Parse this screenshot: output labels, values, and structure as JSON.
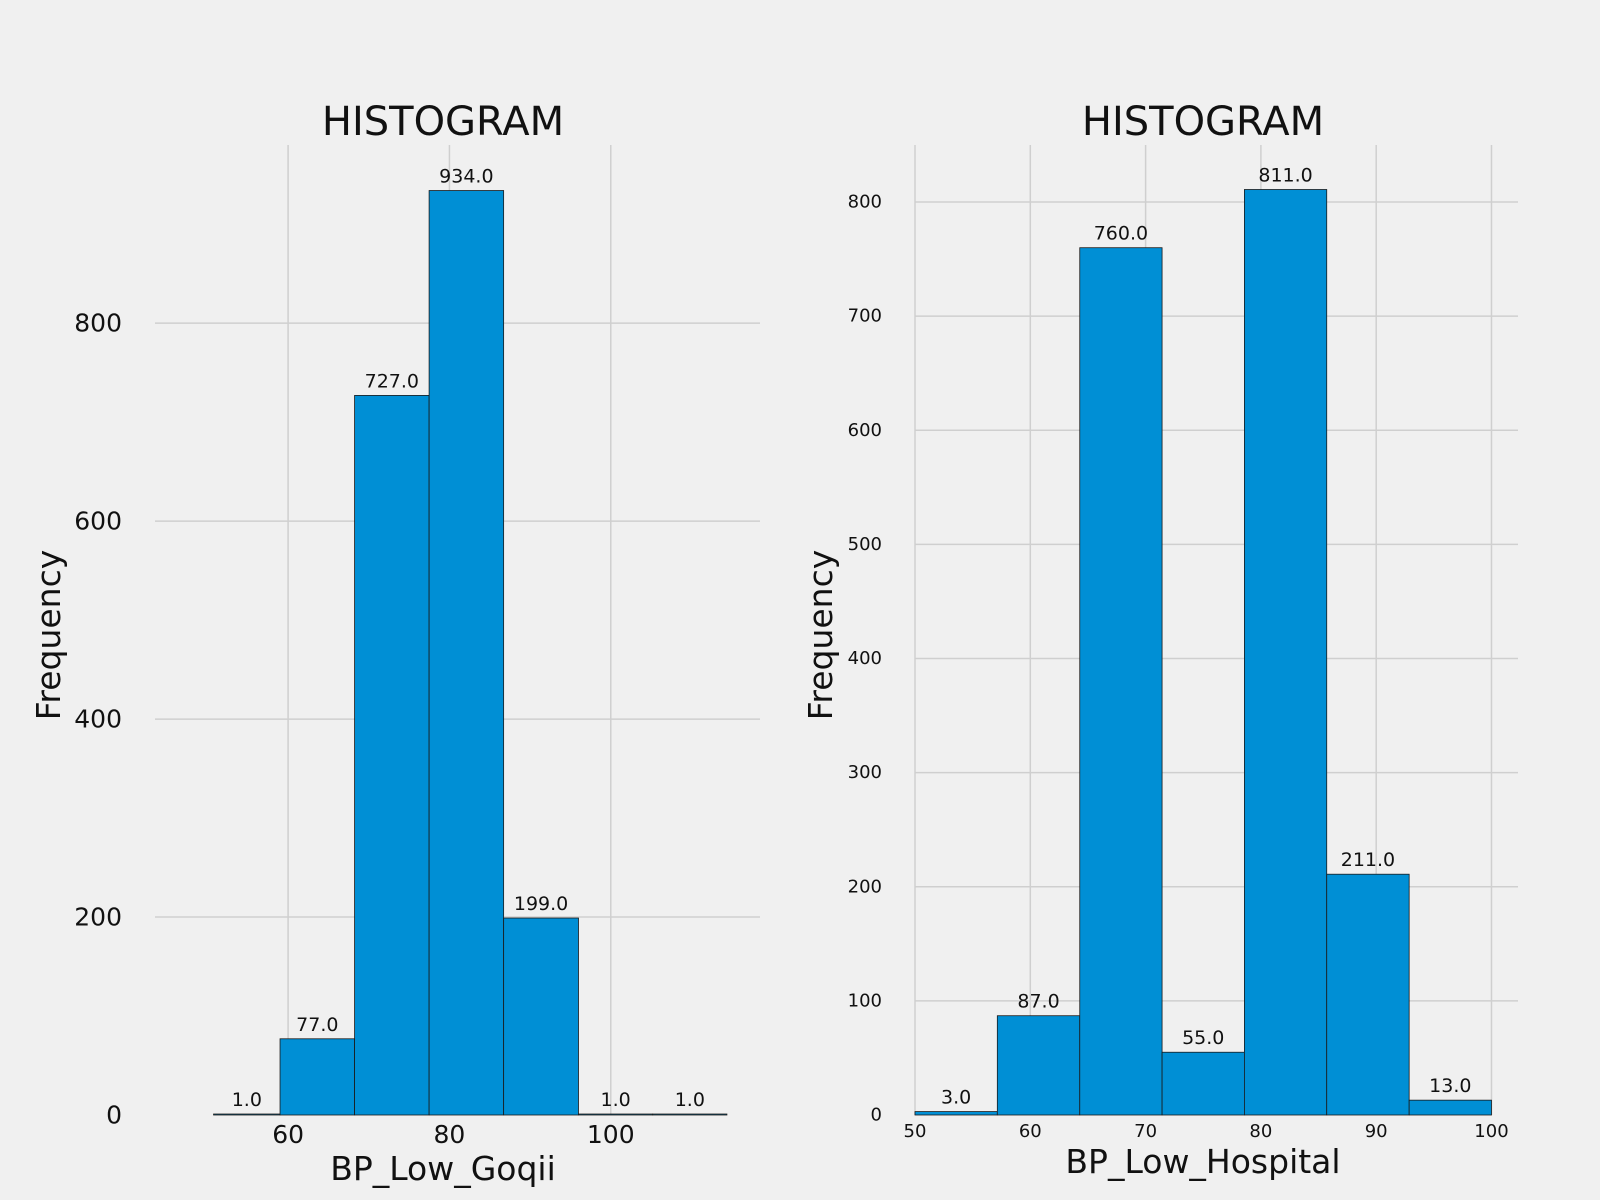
{
  "chart_data": [
    {
      "type": "bar",
      "title": "HISTOGRAM",
      "xlabel": "BP_Low_Goqii",
      "ylabel": "Frequency",
      "bar_color": "#008fd5",
      "bins": [
        {
          "x0": 50.76,
          "x1": 59.0,
          "value": 1,
          "label": "1.0"
        },
        {
          "x0": 59.0,
          "x1": 68.24,
          "value": 77,
          "label": "77.0"
        },
        {
          "x0": 68.24,
          "x1": 77.48,
          "value": 727,
          "label": "727.0"
        },
        {
          "x0": 77.48,
          "x1": 86.72,
          "value": 934,
          "label": "934.0"
        },
        {
          "x0": 86.72,
          "x1": 96.0,
          "value": 199,
          "label": "199.0"
        },
        {
          "x0": 96.0,
          "x1": 105.2,
          "value": 1,
          "label": "1.0"
        },
        {
          "x0": 105.2,
          "x1": 114.4,
          "value": 1,
          "label": "1.0"
        }
      ],
      "xticks": [
        {
          "value": 60,
          "label": "60"
        },
        {
          "value": 80,
          "label": "80"
        },
        {
          "value": 100,
          "label": "100"
        }
      ],
      "yticks": [
        {
          "value": 0,
          "label": "0"
        },
        {
          "value": 200,
          "label": "200"
        },
        {
          "value": 400,
          "label": "400"
        },
        {
          "value": 600,
          "label": "600"
        },
        {
          "value": 800,
          "label": "800"
        }
      ],
      "xlim": [
        43.5,
        118.5
      ],
      "ylim": [
        0,
        980
      ],
      "grid": true
    },
    {
      "type": "bar",
      "title": "HISTOGRAM",
      "xlabel": "BP_Low_Hospital",
      "ylabel": "Frequency",
      "bar_color": "#008fd5",
      "bins": [
        {
          "x0": 50.0,
          "x1": 57.14,
          "value": 3,
          "label": "3.0"
        },
        {
          "x0": 57.14,
          "x1": 64.29,
          "value": 87,
          "label": "87.0"
        },
        {
          "x0": 64.29,
          "x1": 71.43,
          "value": 760,
          "label": "760.0"
        },
        {
          "x0": 71.43,
          "x1": 78.57,
          "value": 55,
          "label": "55.0"
        },
        {
          "x0": 78.57,
          "x1": 85.71,
          "value": 811,
          "label": "811.0"
        },
        {
          "x0": 85.71,
          "x1": 92.86,
          "value": 211,
          "label": "211.0"
        },
        {
          "x0": 92.86,
          "x1": 100.0,
          "value": 13,
          "label": "13.0"
        }
      ],
      "xticks": [
        {
          "value": 50,
          "label": "50"
        },
        {
          "value": 60,
          "label": "60"
        },
        {
          "value": 70,
          "label": "70"
        },
        {
          "value": 80,
          "label": "80"
        },
        {
          "value": 90,
          "label": "90"
        },
        {
          "value": 100,
          "label": "100"
        }
      ],
      "yticks": [
        {
          "value": 0,
          "label": "0"
        },
        {
          "value": 100,
          "label": "100"
        },
        {
          "value": 200,
          "label": "200"
        },
        {
          "value": 300,
          "label": "300"
        },
        {
          "value": 400,
          "label": "400"
        },
        {
          "value": 500,
          "label": "500"
        },
        {
          "value": 600,
          "label": "600"
        },
        {
          "value": 700,
          "label": "700"
        },
        {
          "value": 800,
          "label": "800"
        }
      ],
      "xlim": [
        50,
        102.3
      ],
      "ylim": [
        0,
        850
      ],
      "grid": true
    }
  ]
}
